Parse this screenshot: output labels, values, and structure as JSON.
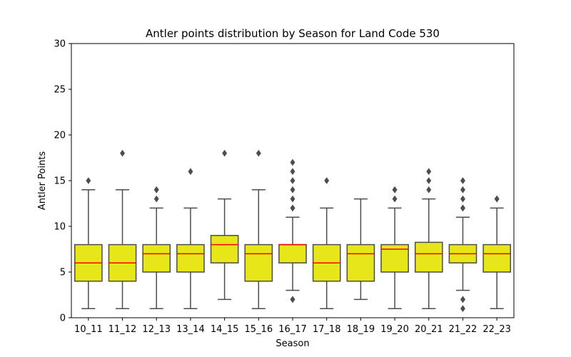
{
  "chart_data": {
    "type": "box",
    "title": "Antler points distribution by Season for Land Code 530",
    "xlabel": "Season",
    "ylabel": "Antler Points",
    "ylim": [
      0,
      30
    ],
    "yticks": [
      0,
      5,
      10,
      15,
      20,
      25,
      30
    ],
    "grid": false,
    "legend": "none",
    "box_color": "#e6e619",
    "median_color": "#ff0000",
    "edge_color": "#4d4d4d",
    "categories": [
      "10_11",
      "11_12",
      "12_13",
      "13_14",
      "14_15",
      "15_16",
      "16_17",
      "17_18",
      "18_19",
      "19_20",
      "20_21",
      "21_22",
      "22_23"
    ],
    "boxes": [
      {
        "season": "10_11",
        "whisker_low": 1,
        "q1": 4,
        "median": 6,
        "q3": 8,
        "whisker_high": 14,
        "outliers": [
          15
        ]
      },
      {
        "season": "11_12",
        "whisker_low": 1,
        "q1": 4,
        "median": 6,
        "q3": 8,
        "whisker_high": 14,
        "outliers": [
          18
        ]
      },
      {
        "season": "12_13",
        "whisker_low": 1,
        "q1": 5,
        "median": 7,
        "q3": 8,
        "whisker_high": 12,
        "outliers": [
          13,
          14,
          14
        ]
      },
      {
        "season": "13_14",
        "whisker_low": 1,
        "q1": 5,
        "median": 7,
        "q3": 8,
        "whisker_high": 12,
        "outliers": [
          16
        ]
      },
      {
        "season": "14_15",
        "whisker_low": 2,
        "q1": 6,
        "median": 8,
        "q3": 9,
        "whisker_high": 13,
        "outliers": [
          18
        ]
      },
      {
        "season": "15_16",
        "whisker_low": 1,
        "q1": 4,
        "median": 7,
        "q3": 8,
        "whisker_high": 14,
        "outliers": [
          18
        ]
      },
      {
        "season": "16_17",
        "whisker_low": 3,
        "q1": 6,
        "median": 8,
        "q3": 8,
        "whisker_high": 11,
        "outliers": [
          2,
          2,
          12,
          12,
          13,
          14,
          15,
          16,
          17
        ]
      },
      {
        "season": "17_18",
        "whisker_low": 1,
        "q1": 4,
        "median": 6,
        "q3": 8,
        "whisker_high": 12,
        "outliers": [
          15
        ]
      },
      {
        "season": "18_19",
        "whisker_low": 2,
        "q1": 4,
        "median": 7,
        "q3": 8,
        "whisker_high": 13,
        "outliers": []
      },
      {
        "season": "19_20",
        "whisker_low": 1,
        "q1": 5,
        "median": 7.5,
        "q3": 8,
        "whisker_high": 12,
        "outliers": [
          13,
          14,
          14
        ]
      },
      {
        "season": "20_21",
        "whisker_low": 1,
        "q1": 5,
        "median": 7,
        "q3": 8.25,
        "whisker_high": 13,
        "outliers": [
          14,
          15,
          16
        ]
      },
      {
        "season": "21_22",
        "whisker_low": 3,
        "q1": 6,
        "median": 7,
        "q3": 8,
        "whisker_high": 11,
        "outliers": [
          1,
          2,
          2,
          12,
          12,
          13,
          14,
          15
        ]
      },
      {
        "season": "22_23",
        "whisker_low": 1,
        "q1": 5,
        "median": 7,
        "q3": 8,
        "whisker_high": 12,
        "outliers": [
          13,
          13
        ]
      }
    ]
  }
}
